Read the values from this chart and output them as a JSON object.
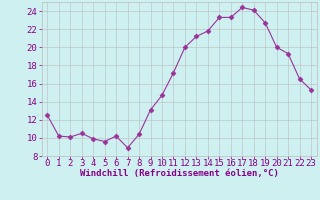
{
  "x": [
    0,
    1,
    2,
    3,
    4,
    5,
    6,
    7,
    8,
    9,
    10,
    11,
    12,
    13,
    14,
    15,
    16,
    17,
    18,
    19,
    20,
    21,
    22,
    23
  ],
  "y": [
    12.5,
    10.2,
    10.1,
    10.5,
    9.9,
    9.6,
    10.2,
    8.9,
    10.4,
    13.1,
    14.7,
    17.2,
    20.0,
    21.2,
    21.8,
    23.3,
    23.3,
    24.4,
    24.1,
    22.7,
    20.0,
    19.3,
    16.5,
    15.3
  ],
  "line_color": "#993399",
  "marker": "D",
  "marker_size": 2.5,
  "bg_color": "#cff0f0",
  "grid_color": "#bbbbbb",
  "xlabel": "Windchill (Refroidissement éolien,°C)",
  "ylim": [
    8,
    25
  ],
  "xlim": [
    -0.5,
    23.5
  ],
  "yticks": [
    8,
    10,
    12,
    14,
    16,
    18,
    20,
    22,
    24
  ],
  "xticks": [
    0,
    1,
    2,
    3,
    4,
    5,
    6,
    7,
    8,
    9,
    10,
    11,
    12,
    13,
    14,
    15,
    16,
    17,
    18,
    19,
    20,
    21,
    22,
    23
  ],
  "font_color": "#880088",
  "tick_fontsize": 6.5,
  "xlabel_fontsize": 6.5
}
